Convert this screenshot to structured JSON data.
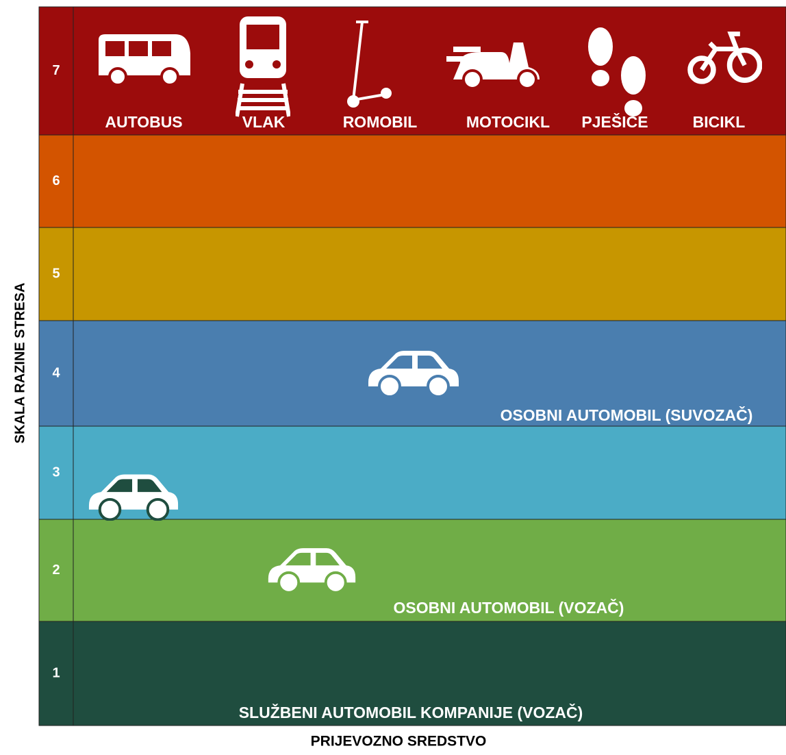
{
  "y_axis_label": "SKALA RAZINE STRESA",
  "x_axis_label": "PRIJEVOZNO SREDSTVO",
  "levels": [
    {
      "label": "7",
      "items": [
        {
          "label": "AUTOBUS"
        },
        {
          "label": "VLAK"
        },
        {
          "label": "ROMOBIL"
        },
        {
          "label": "MOTOCIKL"
        },
        {
          "label": "PJEŠICE"
        },
        {
          "label": "BICIKL"
        }
      ]
    },
    {
      "label": "6",
      "items": []
    },
    {
      "label": "5",
      "items": []
    },
    {
      "label": "4",
      "items": [
        {
          "label": "OSOBNI AUTOMOBIL (SUVOZAČ)"
        }
      ]
    },
    {
      "label": "3",
      "items": []
    },
    {
      "label": "2",
      "items": [
        {
          "label": "OSOBNI AUTOMOBIL (VOZAČ)"
        }
      ]
    },
    {
      "label": "1",
      "items": [
        {
          "label": "SLUŽBENI AUTOMOBIL KOMPANIJE (VOZAČ)"
        }
      ]
    }
  ]
}
